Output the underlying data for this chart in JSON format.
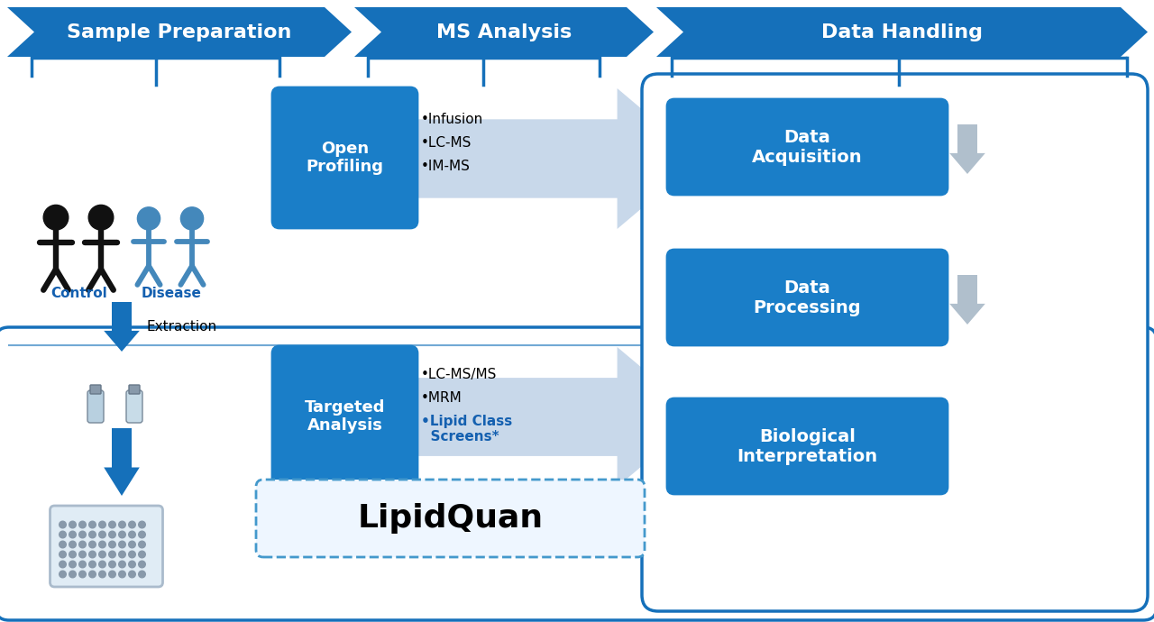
{
  "bg_color": "#ffffff",
  "blue_banner": "#1570ba",
  "blue_box": "#1a7ec8",
  "blue_dark": "#1055a0",
  "blue_label": "#1460b0",
  "gray_arrow": "#b0bfcc",
  "light_arrow": "#c8d8ea",
  "banner_labels": [
    "Sample Preparation",
    "MS Analysis",
    "Data Handling"
  ],
  "open_profiling_label": "Open\nProfiling",
  "targeted_analysis_label": "Targeted\nAnalysis",
  "data_acquisition_label": "Data\nAcquisition",
  "data_processing_label": "Data\nProcessing",
  "biological_interpretation_label": "Biological\nInterpretation",
  "lipidquan_label": "LipidQuan",
  "open_profiling_bullets": [
    "•Infusion",
    "•LC-MS",
    "•IM-MS"
  ],
  "control_label": "Control",
  "disease_label": "Disease",
  "extraction_label": "Extraction",
  "bullet_lc_ms_ms": "•LC-MS/MS",
  "bullet_mrm": "•MRM",
  "bullet_lipid": "•Lipid Class\n  Screens*"
}
